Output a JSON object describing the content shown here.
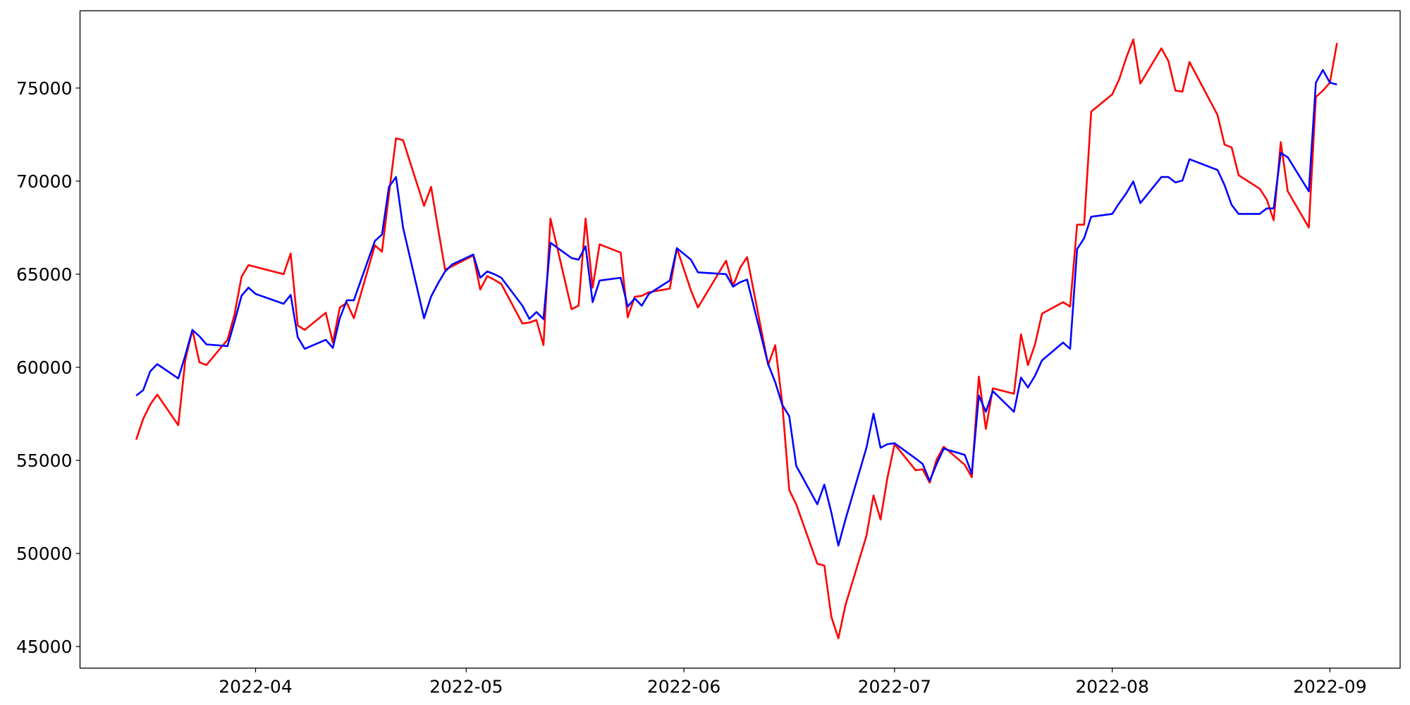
{
  "chart_data": {
    "type": "line",
    "x": [
      "2022-03-15",
      "2022-03-16",
      "2022-03-17",
      "2022-03-18",
      "2022-03-21",
      "2022-03-22",
      "2022-03-23",
      "2022-03-24",
      "2022-03-25",
      "2022-03-28",
      "2022-03-29",
      "2022-03-30",
      "2022-03-31",
      "2022-04-01",
      "2022-04-05",
      "2022-04-06",
      "2022-04-07",
      "2022-04-08",
      "2022-04-11",
      "2022-04-12",
      "2022-04-13",
      "2022-04-14",
      "2022-04-15",
      "2022-04-18",
      "2022-04-19",
      "2022-04-20",
      "2022-04-21",
      "2022-04-22",
      "2022-04-25",
      "2022-04-26",
      "2022-04-27",
      "2022-04-28",
      "2022-04-29",
      "2022-05-02",
      "2022-05-03",
      "2022-05-04",
      "2022-05-05",
      "2022-05-06",
      "2022-05-09",
      "2022-05-10",
      "2022-05-11",
      "2022-05-12",
      "2022-05-13",
      "2022-05-16",
      "2022-05-17",
      "2022-05-18",
      "2022-05-19",
      "2022-05-20",
      "2022-05-23",
      "2022-05-24",
      "2022-05-25",
      "2022-05-26",
      "2022-05-27",
      "2022-05-30",
      "2022-05-31",
      "2022-06-02",
      "2022-06-03",
      "2022-06-07",
      "2022-06-08",
      "2022-06-09",
      "2022-06-10",
      "2022-06-13",
      "2022-06-14",
      "2022-06-15",
      "2022-06-16",
      "2022-06-17",
      "2022-06-20",
      "2022-06-21",
      "2022-06-22",
      "2022-06-23",
      "2022-06-24",
      "2022-06-27",
      "2022-06-28",
      "2022-06-29",
      "2022-06-30",
      "2022-07-01",
      "2022-07-04",
      "2022-07-05",
      "2022-07-06",
      "2022-07-07",
      "2022-07-08",
      "2022-07-11",
      "2022-07-12",
      "2022-07-13",
      "2022-07-14",
      "2022-07-15",
      "2022-07-18",
      "2022-07-19",
      "2022-07-20",
      "2022-07-21",
      "2022-07-22",
      "2022-07-25",
      "2022-07-26",
      "2022-07-27",
      "2022-07-28",
      "2022-07-29",
      "2022-08-01",
      "2022-08-02",
      "2022-08-03",
      "2022-08-04",
      "2022-08-05",
      "2022-08-08",
      "2022-08-09",
      "2022-08-10",
      "2022-08-11",
      "2022-08-12",
      "2022-08-16",
      "2022-08-17",
      "2022-08-18",
      "2022-08-19",
      "2022-08-22",
      "2022-08-23",
      "2022-08-24",
      "2022-08-25",
      "2022-08-26",
      "2022-08-29",
      "2022-08-30",
      "2022-08-31",
      "2022-09-01",
      "2022-09-02"
    ],
    "series": [
      {
        "color": "red",
        "values": [
          56115,
          57226,
          58000,
          58530,
          56890,
          60410,
          62010,
          60270,
          60120,
          61480,
          62830,
          64860,
          65490,
          65390,
          65000,
          66110,
          62250,
          62010,
          62930,
          61330,
          63210,
          63460,
          62640,
          66550,
          66210,
          69300,
          72300,
          72200,
          68670,
          69690,
          67420,
          65240,
          65430,
          66010,
          64180,
          64900,
          64700,
          64470,
          62350,
          62400,
          62540,
          61190,
          67990,
          63120,
          63310,
          67990,
          64280,
          66600,
          66160,
          62680,
          63790,
          63840,
          64030,
          64230,
          66400,
          64130,
          63210,
          65720,
          64370,
          65340,
          65920,
          60120,
          61190,
          58100,
          53410,
          52640,
          49450,
          49350,
          46600,
          45440,
          47220,
          50950,
          53120,
          51820,
          54090,
          55870,
          54470,
          54520,
          53800,
          55050,
          55730,
          54760,
          54090,
          59500,
          56690,
          58870,
          58580,
          61770,
          60120,
          61230,
          62880,
          63500,
          63260,
          67660,
          67660,
          73740,
          74660,
          75480,
          76640,
          77610,
          75240,
          77130,
          76450,
          74860,
          74810,
          76400,
          73550,
          71960,
          71810,
          70320,
          69590,
          69010,
          67900,
          72100,
          69450,
          67510,
          74520,
          74860,
          75290,
          77420
        ]
      },
      {
        "color": "blue",
        "values": [
          58480,
          58771,
          59785,
          60170,
          59400,
          60650,
          62010,
          61670,
          61230,
          61140,
          62440,
          63840,
          64280,
          63940,
          63410,
          63890,
          61620,
          60990,
          61480,
          61040,
          62640,
          63600,
          63600,
          66790,
          67130,
          69690,
          70220,
          67510,
          62640,
          63800,
          64520,
          65150,
          65530,
          66060,
          64810,
          65150,
          65000,
          64810,
          63310,
          62600,
          62970,
          62590,
          66690,
          65870,
          65780,
          66500,
          63500,
          64660,
          64810,
          63260,
          63700,
          63310,
          63940,
          64660,
          66400,
          65780,
          65100,
          65000,
          64330,
          64570,
          64710,
          60170,
          59200,
          57990,
          57370,
          54710,
          52640,
          53700,
          52200,
          50420,
          51820,
          55680,
          57510,
          55680,
          55870,
          55920,
          55100,
          54810,
          53890,
          54810,
          55630,
          55290,
          54280,
          58480,
          57610,
          58720,
          57610,
          59450,
          58920,
          59550,
          60370,
          61330,
          60990,
          66350,
          66930,
          68090,
          68240,
          68820,
          69350,
          69980,
          68820,
          70220,
          70220,
          69930,
          70030,
          71180,
          70600,
          69780,
          68720,
          68240,
          68240,
          68530,
          68530,
          71520,
          71280,
          69450,
          75290,
          75970,
          75290,
          75190
        ]
      }
    ],
    "xlim": [
      "2022-03-07",
      "2022-09-11"
    ],
    "xticks": [
      {
        "value": "2022-04-01",
        "label": "2022-04"
      },
      {
        "value": "2022-05-01",
        "label": "2022-05"
      },
      {
        "value": "2022-06-01",
        "label": "2022-06"
      },
      {
        "value": "2022-07-01",
        "label": "2022-07"
      },
      {
        "value": "2022-08-01",
        "label": "2022-08"
      },
      {
        "value": "2022-09-01",
        "label": "2022-09"
      }
    ],
    "ylim": [
      43840,
      79150
    ],
    "yticks": [
      45000,
      50000,
      55000,
      60000,
      65000,
      70000,
      75000
    ]
  }
}
